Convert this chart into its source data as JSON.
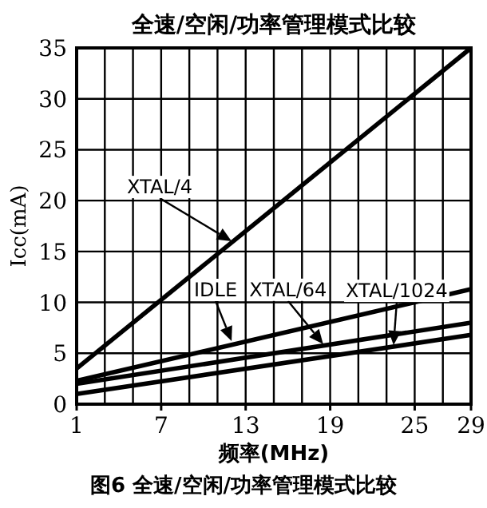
{
  "chart_data": {
    "type": "line",
    "title": "全速/空闲/功率管理模式比较",
    "xlabel": "频率(MHz)",
    "ylabel": "Icc(mA)",
    "xlim": [
      1,
      29
    ],
    "xticks": [
      1,
      7,
      13,
      19,
      25,
      29
    ],
    "ylim": [
      0,
      35
    ],
    "yticks": [
      0,
      5,
      10,
      15,
      20,
      25,
      30,
      35
    ],
    "grid": true,
    "x": [
      1,
      29
    ],
    "series": [
      {
        "color": "#000000",
        "values": [
          3.5,
          35
        ]
      },
      {
        "color": "#000000",
        "values": [
          2.3,
          11.3
        ]
      },
      {
        "color": "#000000",
        "values": [
          2.0,
          8.0
        ]
      },
      {
        "color": "#000000",
        "values": [
          1.0,
          6.8
        ]
      }
    ],
    "annotations": [
      {
        "text": "XTAL/4",
        "x": 12,
        "y": 16
      },
      {
        "text": "IDLE",
        "x": 12,
        "y": 6.2
      },
      {
        "text": "XTAL/64",
        "x": 18.5,
        "y": 5.9
      },
      {
        "text": "XTAL/1024",
        "x": 23.5,
        "y": 5.8
      },
      "图6  全速/空闲/功率管理模式比较"
    ]
  }
}
